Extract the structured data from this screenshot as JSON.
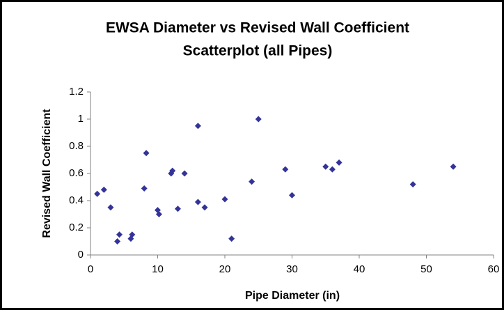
{
  "chart_data": {
    "type": "scatter",
    "title": "EWSA Diameter vs Revised Wall Coefficient",
    "subtitle": "Scatterplot (all Pipes)",
    "x_label": "Pipe Diameter (in)",
    "y_label": "Revised Wall Coefficient",
    "color": "#333399",
    "x": [
      1,
      2,
      3,
      4,
      4.3,
      6,
      6.2,
      8,
      8.3,
      10,
      10.2,
      12,
      12.2,
      13,
      14,
      16,
      16,
      17,
      20,
      21,
      24,
      25,
      29,
      30,
      35,
      36,
      37,
      48,
      54
    ],
    "values": [
      0.45,
      0.48,
      0.35,
      0.1,
      0.15,
      0.12,
      0.15,
      0.49,
      0.75,
      0.33,
      0.3,
      0.6,
      0.62,
      0.34,
      0.6,
      0.95,
      0.39,
      0.35,
      0.41,
      0.12,
      0.54,
      1.0,
      0.63,
      0.44,
      0.65,
      0.63,
      0.68,
      0.52,
      0.65
    ],
    "xlim": [
      0,
      60
    ],
    "xticks": [
      0,
      10,
      20,
      30,
      40,
      50,
      60
    ],
    "ylim": [
      0,
      1.2
    ],
    "yticks": [
      0,
      0.2,
      0.4,
      0.6,
      0.8,
      1,
      1.2
    ]
  }
}
